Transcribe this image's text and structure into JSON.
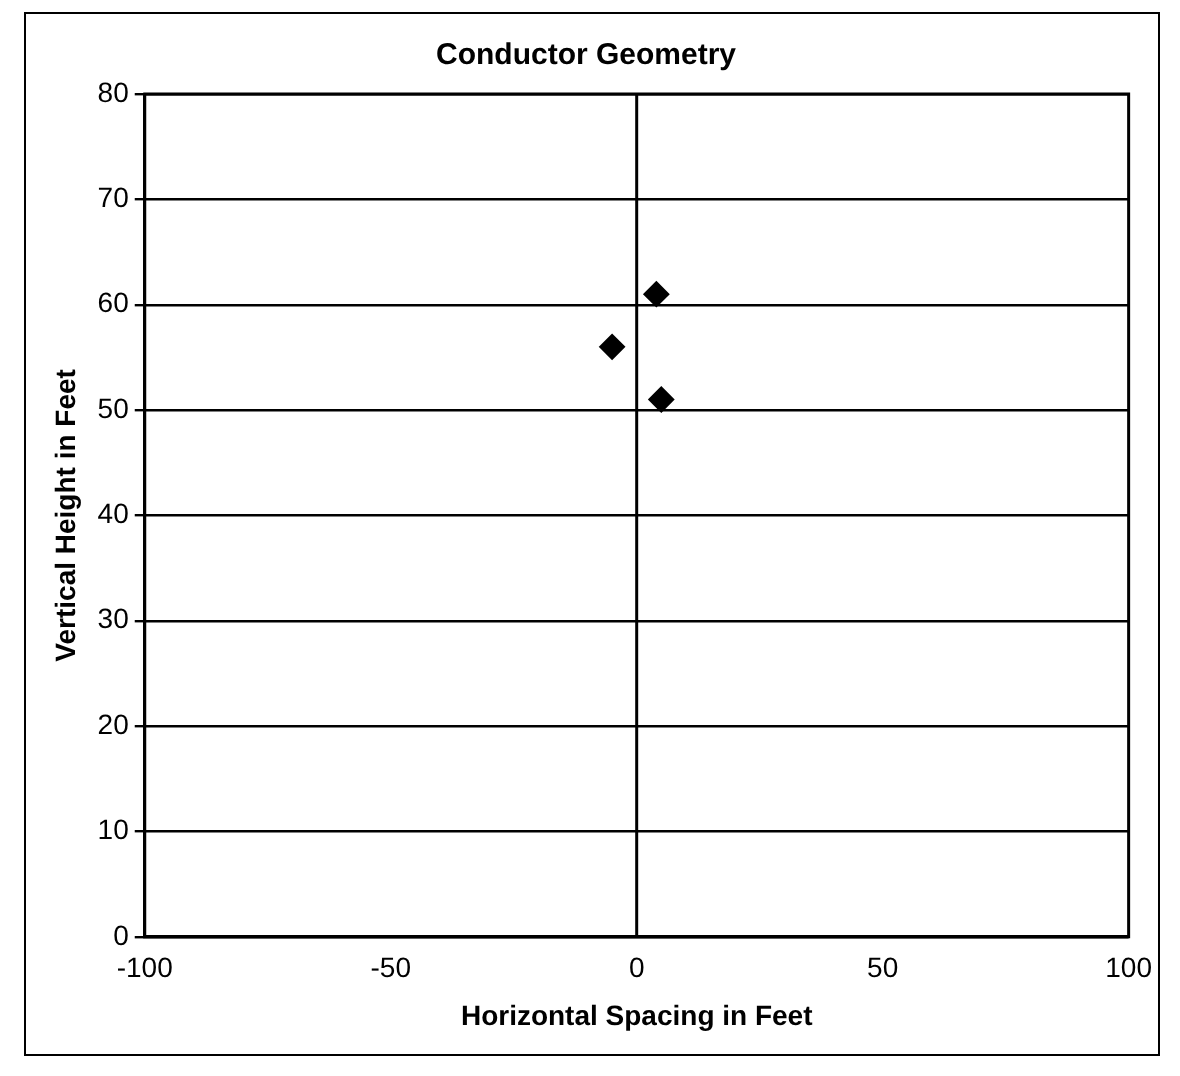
{
  "chart_data": {
    "type": "scatter",
    "title": "Conductor Geometry",
    "xlabel": "Horizontal Spacing in Feet",
    "ylabel": "Vertical Height in Feet",
    "x": [
      4,
      -5,
      5
    ],
    "values": [
      61,
      56,
      51
    ],
    "color": "#000000",
    "marker": "diamond",
    "xlim": [
      -100,
      100
    ],
    "xticks": [
      -100,
      -50,
      0,
      50,
      100
    ],
    "ylim": [
      0,
      80
    ],
    "yticks": [
      0,
      10,
      20,
      30,
      40,
      50,
      60,
      70,
      80
    ],
    "grid": "y",
    "ref_lines": [
      {
        "axis": "x",
        "value": 0,
        "color": "#000000"
      }
    ]
  }
}
